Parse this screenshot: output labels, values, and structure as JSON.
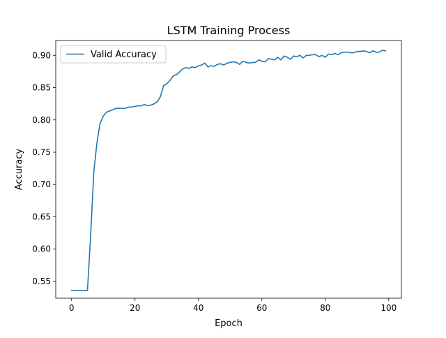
{
  "chart_data": {
    "type": "line",
    "title": "LSTM Training Process",
    "xlabel": "Epoch",
    "ylabel": "Accuracy",
    "xlim": [
      -5,
      104
    ],
    "ylim": [
      0.524,
      0.923
    ],
    "xticks": [
      0,
      20,
      40,
      60,
      80,
      100
    ],
    "xtick_labels": [
      "0",
      "20",
      "40",
      "60",
      "80",
      "100"
    ],
    "yticks": [
      0.55,
      0.6,
      0.65,
      0.7,
      0.75,
      0.8,
      0.85,
      0.9
    ],
    "ytick_labels": [
      "0.55",
      "0.60",
      "0.65",
      "0.70",
      "0.75",
      "0.80",
      "0.85",
      "0.90"
    ],
    "legend_position": "upper-left",
    "grid": false,
    "series": [
      {
        "name": "Valid Accuracy",
        "color": "#1f77b4",
        "x": [
          0,
          1,
          2,
          3,
          4,
          5,
          6,
          7,
          8,
          9,
          10,
          11,
          12,
          13,
          14,
          15,
          16,
          17,
          18,
          19,
          20,
          21,
          22,
          23,
          24,
          25,
          26,
          27,
          28,
          29,
          30,
          31,
          32,
          33,
          34,
          35,
          36,
          37,
          38,
          39,
          40,
          41,
          42,
          43,
          44,
          45,
          46,
          47,
          48,
          49,
          50,
          51,
          52,
          53,
          54,
          55,
          56,
          57,
          58,
          59,
          60,
          61,
          62,
          63,
          64,
          65,
          66,
          67,
          68,
          69,
          70,
          71,
          72,
          73,
          74,
          75,
          76,
          77,
          78,
          79,
          80,
          81,
          82,
          83,
          84,
          85,
          86,
          87,
          88,
          89,
          90,
          91,
          92,
          93,
          94,
          95,
          96,
          97,
          98,
          99
        ],
        "values": [
          0.536,
          0.536,
          0.536,
          0.536,
          0.536,
          0.536,
          0.62,
          0.72,
          0.765,
          0.795,
          0.806,
          0.812,
          0.814,
          0.816,
          0.818,
          0.818,
          0.818,
          0.818,
          0.82,
          0.82,
          0.821,
          0.822,
          0.822,
          0.824,
          0.822,
          0.823,
          0.825,
          0.828,
          0.836,
          0.853,
          0.856,
          0.861,
          0.868,
          0.87,
          0.874,
          0.879,
          0.881,
          0.88,
          0.882,
          0.881,
          0.884,
          0.885,
          0.888,
          0.882,
          0.884,
          0.883,
          0.886,
          0.887,
          0.885,
          0.888,
          0.889,
          0.89,
          0.889,
          0.886,
          0.891,
          0.889,
          0.888,
          0.889,
          0.889,
          0.893,
          0.891,
          0.89,
          0.895,
          0.894,
          0.893,
          0.897,
          0.893,
          0.899,
          0.897,
          0.894,
          0.899,
          0.898,
          0.9,
          0.896,
          0.9,
          0.9,
          0.901,
          0.901,
          0.898,
          0.9,
          0.897,
          0.902,
          0.901,
          0.903,
          0.901,
          0.904,
          0.905,
          0.905,
          0.904,
          0.904,
          0.906,
          0.906,
          0.907,
          0.906,
          0.904,
          0.907,
          0.905,
          0.905,
          0.908,
          0.907
        ]
      }
    ]
  }
}
